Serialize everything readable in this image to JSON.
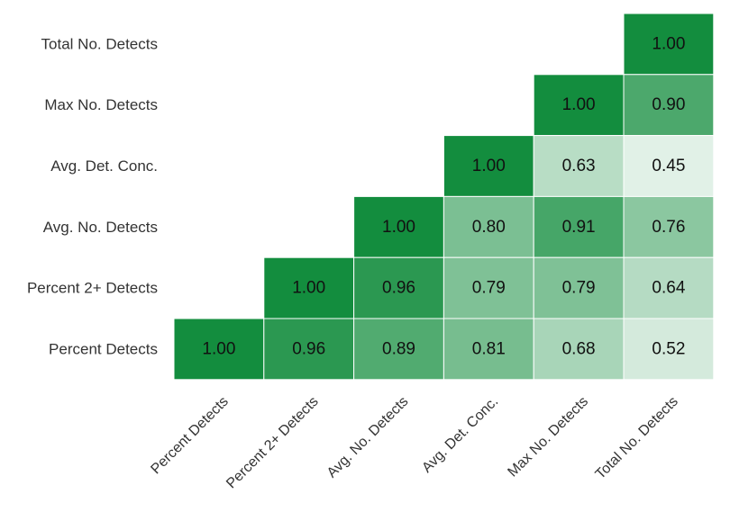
{
  "chart_data": {
    "type": "heatmap",
    "title": "",
    "xlabel": "",
    "ylabel": "",
    "row_labels": [
      "Total No. Detects",
      "Max No. Detects",
      "Avg. Det. Conc.",
      "Avg. No. Detects",
      "Percent 2+ Detects",
      "Percent Detects"
    ],
    "column_labels": [
      "Percent Detects",
      "Percent 2+ Detects",
      "Avg. No. Detects",
      "Avg. Det. Conc.",
      "Max No. Detects",
      "Total No. Detects"
    ],
    "values": [
      [
        null,
        null,
        null,
        null,
        null,
        1.0
      ],
      [
        null,
        null,
        null,
        null,
        1.0,
        0.9
      ],
      [
        null,
        null,
        null,
        1.0,
        0.63,
        0.45
      ],
      [
        null,
        null,
        1.0,
        0.8,
        0.91,
        0.76
      ],
      [
        null,
        1.0,
        0.96,
        0.79,
        0.79,
        0.64
      ],
      [
        1.0,
        0.96,
        0.89,
        0.81,
        0.68,
        0.52
      ]
    ],
    "value_format": "0.00",
    "color_scale": {
      "low_color": "#ffffff",
      "high_color": "#138d3e",
      "min": 0,
      "max": 1
    },
    "cell_border_color": "#ffffff",
    "grid": false,
    "legend": "none"
  }
}
